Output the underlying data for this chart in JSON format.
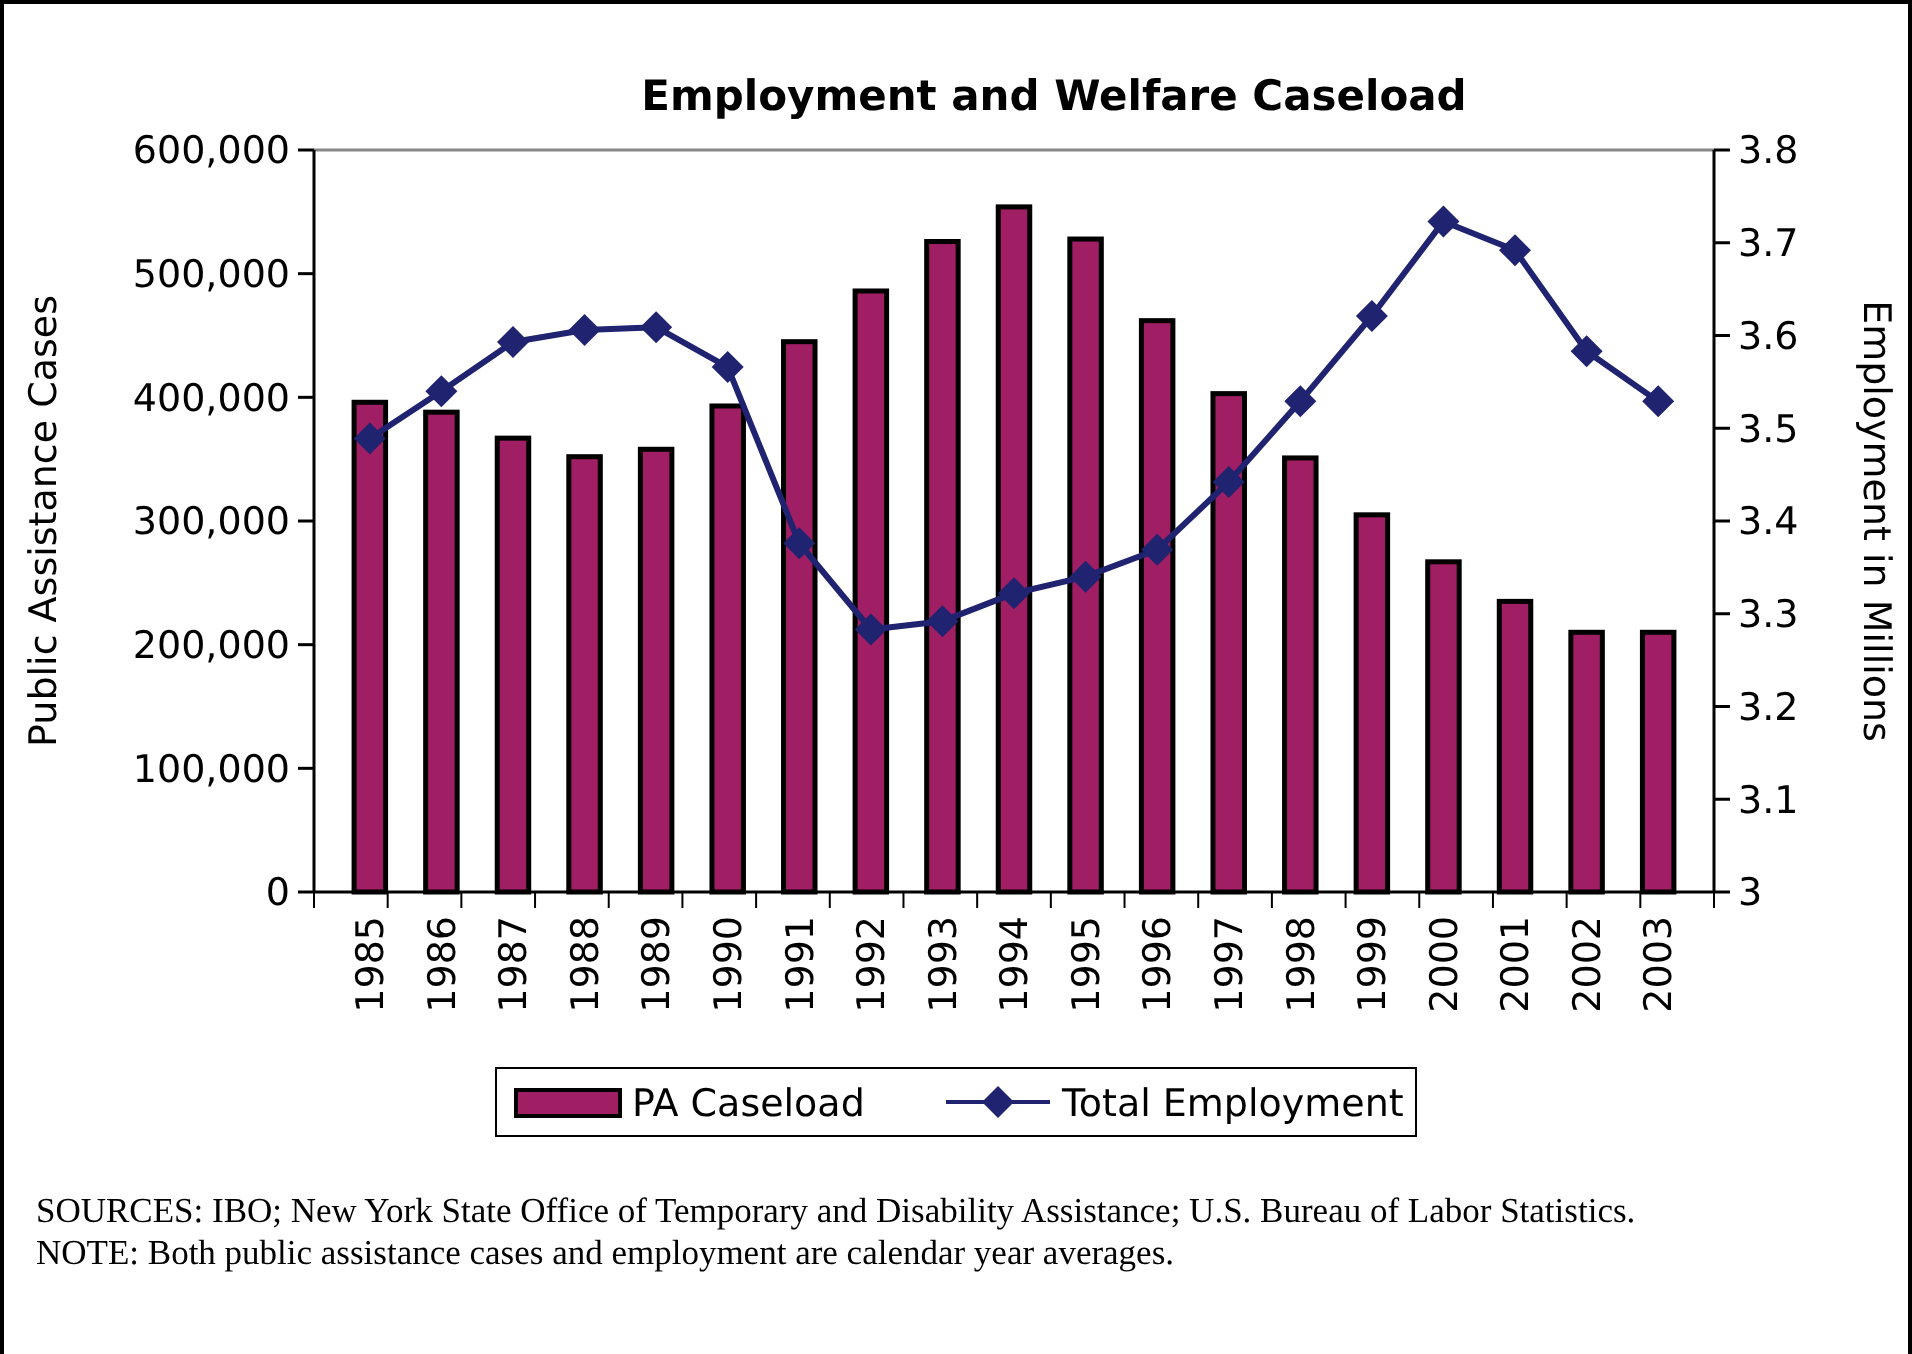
{
  "chart_data": {
    "type": "bar",
    "title": "Employment and Welfare Caseload",
    "ylabel": "Public Assistance Cases",
    "y2label": "Employment in Millions",
    "categories": [
      "1985",
      "1986",
      "1987",
      "1988",
      "1989",
      "1990",
      "1991",
      "1992",
      "1993",
      "1994",
      "1995",
      "1996",
      "1997",
      "1998",
      "1999",
      "2000",
      "2001",
      "2002",
      "2003"
    ],
    "series": [
      {
        "name": "PA Caseload",
        "color": "#a01e64",
        "values": [
          396000,
          388000,
          367000,
          352000,
          358000,
          393000,
          445000,
          486000,
          526000,
          554000,
          528000,
          462000,
          403000,
          351000,
          305000,
          267000,
          235000,
          210000,
          210000
        ]
      },
      {
        "name": "Total Employment",
        "type": "line",
        "axis": "y2",
        "color": "#1f2370",
        "marker": "diamond",
        "values": [
          3.489,
          3.54,
          3.593,
          3.606,
          3.609,
          3.566,
          3.376,
          3.283,
          3.292,
          3.322,
          3.34,
          3.369,
          3.442,
          3.529,
          3.621,
          3.723,
          3.692,
          3.583,
          3.529
        ]
      }
    ],
    "ylim": [
      0,
      600000
    ],
    "yticks": [
      {
        "value": 0,
        "label": "0"
      },
      {
        "value": 100000,
        "label": "100,000"
      },
      {
        "value": 200000,
        "label": "200,000"
      },
      {
        "value": 300000,
        "label": "300,000"
      },
      {
        "value": 400000,
        "label": "400,000"
      },
      {
        "value": 500000,
        "label": "500,000"
      },
      {
        "value": 600000,
        "label": "600,000"
      }
    ],
    "y2lim": [
      3,
      3.8
    ],
    "y2ticks": [
      3,
      3.1,
      3.2,
      3.3,
      3.4,
      3.5,
      3.6,
      3.7,
      3.8
    ],
    "legend": "bottom",
    "grid": false,
    "annotations": [
      "SOURCES: IBO; New York State Office of Temporary and Disability Assistance; U.S. Bureau of Labor Statistics.",
      "NOTE: Both public assistance cases and employment are calendar year averages."
    ]
  }
}
